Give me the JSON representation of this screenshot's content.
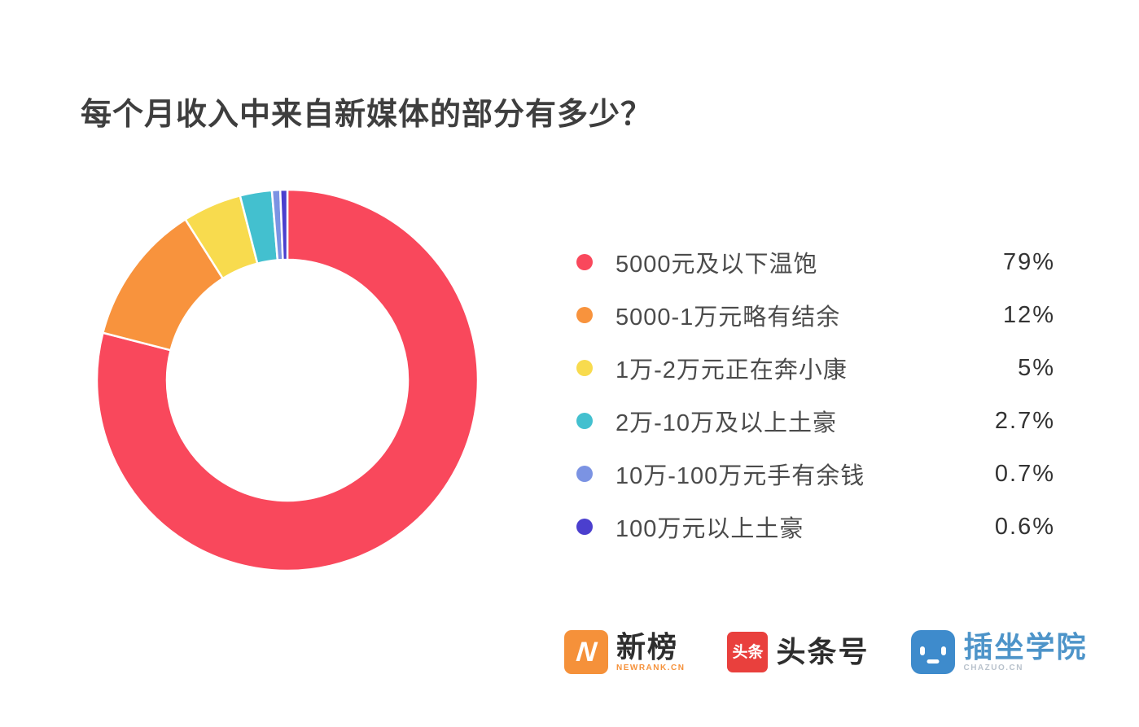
{
  "title": "每个月收入中来自新媒体的部分有多少？",
  "chart_data": {
    "type": "pie",
    "subtype": "donut",
    "title": "每个月收入中来自新媒体的部分有多少？",
    "legend_position": "right",
    "start_angle_deg": 0,
    "direction": "clockwise",
    "total": 100,
    "series": [
      {
        "label": "5000元及以下温饱",
        "value": 79,
        "display": "79%",
        "color": "#F9485C"
      },
      {
        "label": "5000-1万元略有结余",
        "value": 12,
        "display": "12%",
        "color": "#F8933D"
      },
      {
        "label": "1万-2万元正在奔小康",
        "value": 5,
        "display": "5%",
        "color": "#F8DB4E"
      },
      {
        "label": "2万-10万及以上土豪",
        "value": 2.7,
        "display": "2.7%",
        "color": "#43C0CF"
      },
      {
        "label": "10万-100万元手有余钱",
        "value": 0.7,
        "display": "0.7%",
        "color": "#7B93E3"
      },
      {
        "label": "100万元以上土豪",
        "value": 0.6,
        "display": "0.6%",
        "color": "#4B3FCE"
      }
    ]
  },
  "footer": {
    "logos": {
      "newrank": {
        "brand": "新榜",
        "sub": "NEWRANK.CN",
        "badge_text": "N",
        "badge_color": "#F5913A"
      },
      "toutiao": {
        "brand": "头条号",
        "badge_text": "头条",
        "badge_color": "#E9403D"
      },
      "chazuo": {
        "brand": "插坐学院",
        "sub": "CHAZUO.CN",
        "badge_color": "#3E8BCC"
      }
    }
  }
}
